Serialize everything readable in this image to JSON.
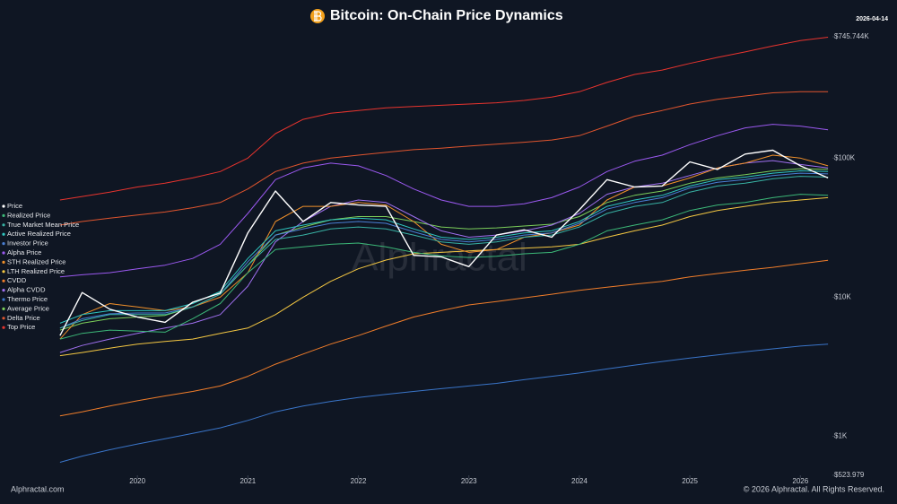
{
  "chart_data": {
    "type": "line",
    "title": "Bitcoin: On-Chain Price Dynamics",
    "date": "2026-04-14",
    "watermark": "Alphractal",
    "source": "Alphractal.com",
    "copyright": "© 2026 Alphractal. All Rights Reserved.",
    "log_y": true,
    "legend": "left",
    "x": [
      2019.3,
      2019.5,
      2019.75,
      2020,
      2020.25,
      2020.5,
      2020.75,
      2021,
      2021.25,
      2021.5,
      2021.75,
      2022,
      2022.25,
      2022.5,
      2022.75,
      2023,
      2023.25,
      2023.5,
      2023.75,
      2024,
      2024.25,
      2024.5,
      2024.75,
      2025,
      2025.25,
      2025.5,
      2025.75,
      2026,
      2026.25
    ],
    "xlim": [
      2019.26,
      2026.29
    ],
    "xticks": [
      2020,
      2021,
      2022,
      2023,
      2024,
      2025,
      2026
    ],
    "ylim": [
      523.979,
      745744
    ],
    "yticks": [
      {
        "value": 523.979,
        "label": "$523.979"
      },
      {
        "value": 1000,
        "label": "$1K"
      },
      {
        "value": 10000,
        "label": "$10K"
      },
      {
        "value": 100000,
        "label": "$100K"
      },
      {
        "value": 745744,
        "label": "$745.744K"
      }
    ],
    "series": [
      {
        "name": "Price",
        "color": "#ffffff",
        "values": [
          5300,
          10800,
          8200,
          7200,
          6600,
          9200,
          10700,
          29000,
          58000,
          35000,
          48000,
          46000,
          45000,
          20000,
          19500,
          16600,
          28000,
          30500,
          27000,
          42500,
          70000,
          62000,
          63000,
          94000,
          83000,
          107000,
          114000,
          88000,
          72000
        ]
      },
      {
        "name": "Realized Price",
        "color": "#3cb878",
        "values": [
          5000,
          5500,
          5800,
          5700,
          5600,
          7000,
          9000,
          15000,
          22000,
          23000,
          24000,
          24500,
          23000,
          21000,
          19800,
          19300,
          19700,
          20500,
          21000,
          24000,
          30000,
          33000,
          36000,
          42000,
          46000,
          48000,
          52000,
          55000,
          54000
        ]
      },
      {
        "name": "True Market Mean Price",
        "color": "#38b2a4",
        "values": [
          6000,
          6800,
          7500,
          7500,
          7500,
          8500,
          10500,
          17000,
          26000,
          28000,
          31000,
          32000,
          31000,
          28000,
          25000,
          24000,
          25000,
          27000,
          28000,
          32000,
          40000,
          45000,
          48000,
          57000,
          63000,
          66000,
          71000,
          74000,
          73000
        ]
      },
      {
        "name": "Active Realized Price",
        "color": "#2fc6c0",
        "values": [
          6500,
          7500,
          8000,
          8000,
          8000,
          9000,
          11000,
          19000,
          30000,
          33000,
          36000,
          37000,
          36000,
          31000,
          27000,
          26000,
          27000,
          29000,
          30000,
          35000,
          45000,
          50000,
          54000,
          63000,
          70000,
          73000,
          78000,
          81000,
          80000
        ]
      },
      {
        "name": "Investor Price",
        "color": "#4a7fd4",
        "values": [
          6000,
          7000,
          7600,
          7700,
          7700,
          8500,
          10500,
          18000,
          28000,
          31000,
          34000,
          35000,
          34000,
          29500,
          26000,
          25000,
          26000,
          28000,
          29000,
          34000,
          43000,
          48000,
          52000,
          61000,
          67000,
          70000,
          75000,
          78000,
          77000
        ]
      },
      {
        "name": "Alpha Price",
        "color": "#9b59f0",
        "values": [
          14000,
          14500,
          15000,
          16000,
          17000,
          19000,
          24000,
          40000,
          70000,
          85000,
          92000,
          88000,
          75000,
          60000,
          50000,
          45000,
          45000,
          47000,
          52000,
          62000,
          80000,
          95000,
          105000,
          125000,
          145000,
          165000,
          175000,
          170000,
          160000
        ]
      },
      {
        "name": "STH Realized Price",
        "color": "#f0902a",
        "values": [
          5000,
          7500,
          9000,
          8500,
          8000,
          8500,
          10000,
          15000,
          35000,
          45000,
          45000,
          48000,
          46000,
          35000,
          24000,
          21000,
          22000,
          27000,
          29000,
          33000,
          50000,
          62000,
          63000,
          72000,
          85000,
          92000,
          105000,
          100000,
          88000
        ]
      },
      {
        "name": "LTH Realized Price",
        "color": "#f5c842",
        "values": [
          3800,
          4000,
          4300,
          4600,
          4800,
          5000,
          5500,
          6000,
          7500,
          10000,
          13000,
          16000,
          18500,
          20500,
          21000,
          21500,
          22000,
          22500,
          23000,
          24000,
          27000,
          30000,
          33000,
          38000,
          42000,
          45000,
          48000,
          50000,
          52000
        ]
      },
      {
        "name": "CVDD",
        "color": "#f07d2a",
        "values": [
          1400,
          1500,
          1650,
          1800,
          1950,
          2100,
          2300,
          2700,
          3300,
          3900,
          4600,
          5300,
          6200,
          7200,
          8000,
          8800,
          9300,
          9900,
          10500,
          11200,
          11800,
          12400,
          13000,
          14000,
          14800,
          15600,
          16400,
          17400,
          18400
        ]
      },
      {
        "name": "Alpha CVDD",
        "color": "#a070f0",
        "values": [
          4000,
          4500,
          5000,
          5500,
          6000,
          6500,
          7500,
          12000,
          25000,
          35000,
          45000,
          50000,
          48000,
          38000,
          30000,
          27000,
          28000,
          30000,
          33000,
          40000,
          55000,
          62000,
          66000,
          75000,
          85000,
          92000,
          96000,
          90000,
          85000
        ]
      },
      {
        "name": "Thermo Price",
        "color": "#3a75c9",
        "values": [
          650,
          720,
          800,
          880,
          960,
          1050,
          1150,
          1300,
          1500,
          1650,
          1780,
          1900,
          2000,
          2100,
          2200,
          2300,
          2400,
          2550,
          2700,
          2850,
          3050,
          3250,
          3450,
          3650,
          3850,
          4050,
          4250,
          4450,
          4600
        ]
      },
      {
        "name": "Average Price",
        "color": "#7ccf5a",
        "values": [
          5800,
          6500,
          7000,
          7200,
          7400,
          8500,
          10500,
          17000,
          28000,
          32000,
          36000,
          38000,
          38000,
          35000,
          32000,
          31000,
          31500,
          32500,
          33500,
          38000,
          48000,
          54000,
          58000,
          66000,
          72000,
          76000,
          81000,
          84000,
          83000
        ]
      },
      {
        "name": "Delta Price",
        "color": "#e0552e",
        "values": [
          33000,
          35000,
          37000,
          39000,
          41000,
          44000,
          48000,
          60000,
          80000,
          92000,
          100000,
          105000,
          110000,
          115000,
          118000,
          122000,
          126000,
          130000,
          135000,
          145000,
          170000,
          200000,
          220000,
          245000,
          265000,
          280000,
          295000,
          300000,
          300000
        ]
      },
      {
        "name": "Top Price",
        "color": "#e8342e",
        "values": [
          50000,
          53000,
          57000,
          62000,
          66000,
          72000,
          80000,
          100000,
          150000,
          190000,
          210000,
          220000,
          230000,
          235000,
          240000,
          245000,
          250000,
          260000,
          275000,
          300000,
          350000,
          400000,
          430000,
          480000,
          530000,
          580000,
          640000,
          700000,
          740000
        ]
      }
    ]
  }
}
